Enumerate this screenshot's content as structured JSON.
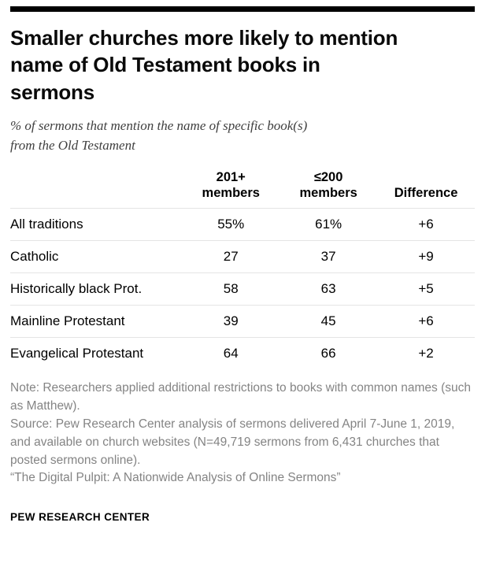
{
  "header": {
    "title_lines": [
      "Smaller churches more likely to mention",
      "name of Old Testament books in",
      "sermons"
    ],
    "subtitle_lines": [
      "% of sermons that mention the name of specific book(s)",
      "from the Old Testament"
    ]
  },
  "table": {
    "headers": [
      {
        "line1": "201+",
        "line2": "members"
      },
      {
        "line1": "≤200",
        "line2": "members"
      },
      {
        "line1": "Difference",
        "line2": ""
      }
    ],
    "rows": [
      {
        "label": "All traditions",
        "large": "55%",
        "small": "61%",
        "difference": "+6"
      },
      {
        "label": "Catholic",
        "large": "27",
        "small": "37",
        "difference": "+9"
      },
      {
        "label": "Historically black Prot.",
        "large": "58",
        "small": "63",
        "difference": "+5"
      },
      {
        "label": "Mainline Protestant",
        "large": "39",
        "small": "45",
        "difference": "+6"
      },
      {
        "label": "Evangelical Protestant",
        "large": "64",
        "small": "66",
        "difference": "+2"
      }
    ]
  },
  "notes": {
    "note": "Note: Researchers applied additional restrictions to books with common names (such as Matthew).",
    "source": "Source: Pew Research Center analysis of sermons delivered April 7-June 1, 2019, and available on church websites (N=49,719 sermons from 6,431 churches that posted sermons online).",
    "report": "“The Digital Pulpit: A Nationwide Analysis of Online Sermons”"
  },
  "footer": {
    "brand": "PEW RESEARCH CENTER"
  },
  "chart_data": {
    "type": "table",
    "title": "Smaller churches more likely to mention name of Old Testament books in sermons",
    "subtitle": "% of sermons that mention the name of specific book(s) from the Old Testament",
    "categories": [
      "All traditions",
      "Catholic",
      "Historically black Prot.",
      "Mainline Protestant",
      "Evangelical Protestant"
    ],
    "series": [
      {
        "name": "201+ members",
        "values": [
          55,
          27,
          58,
          39,
          64
        ]
      },
      {
        "name": "≤200 members",
        "values": [
          61,
          37,
          63,
          45,
          66
        ]
      },
      {
        "name": "Difference",
        "values": [
          6,
          9,
          5,
          6,
          2
        ]
      }
    ],
    "value_unit": "% of sermons",
    "legend_position": "column-headers",
    "grid": "horizontal-row-dividers"
  },
  "colors": {
    "accent_bar": "#000000",
    "title_text": "#0a0a0a",
    "note_gray": "#848484",
    "row_divider": "#e4e4e4"
  }
}
